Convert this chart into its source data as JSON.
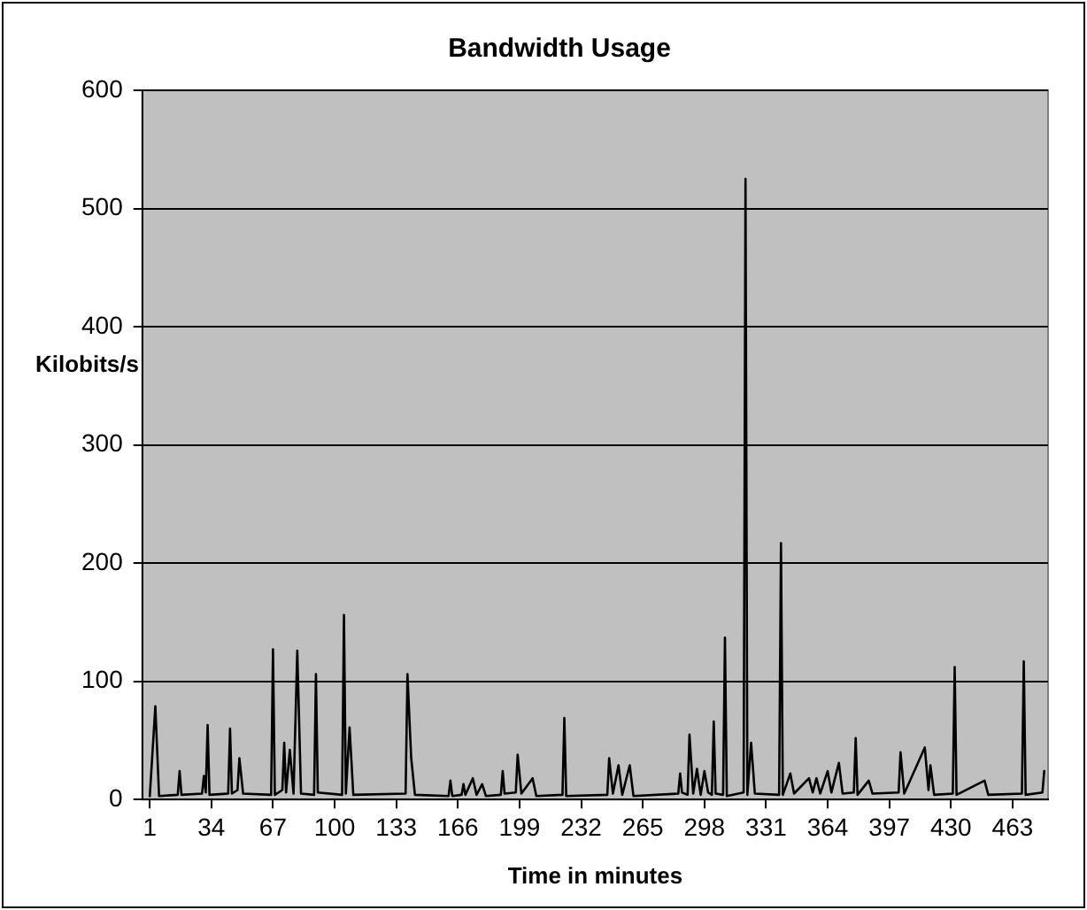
{
  "chart_data": {
    "type": "line",
    "title": "Bandwidth Usage",
    "xlabel": "Time in minutes",
    "ylabel": "Kilobits/s",
    "x": [
      1,
      4,
      6,
      16,
      17,
      18,
      29,
      30,
      31,
      32,
      33,
      43,
      44,
      45,
      48,
      49,
      51,
      66,
      67,
      68,
      72,
      73,
      74,
      76,
      78,
      80,
      82,
      89,
      90,
      91,
      104,
      105,
      106,
      108,
      110,
      138,
      139,
      141,
      143,
      161,
      162,
      163,
      168,
      169,
      170,
      174,
      176,
      179,
      181,
      189,
      190,
      191,
      197,
      198,
      200,
      206,
      208,
      222,
      223,
      224,
      246,
      247,
      249,
      252,
      254,
      258,
      260,
      284,
      285,
      286,
      289,
      290,
      292,
      294,
      296,
      298,
      300,
      302,
      303,
      304,
      308,
      309,
      310,
      319,
      320,
      321,
      323,
      325,
      338,
      339,
      340,
      344,
      346,
      354,
      356,
      358,
      360,
      364,
      366,
      370,
      372,
      378,
      379,
      380,
      386,
      388,
      402,
      403,
      405,
      416,
      418,
      419,
      421,
      431,
      432,
      433,
      448,
      450,
      468,
      469,
      470,
      479,
      480
    ],
    "values": [
      2,
      79,
      3,
      4,
      24,
      4,
      5,
      20,
      6,
      63,
      4,
      5,
      60,
      5,
      8,
      35,
      5,
      4,
      127,
      4,
      8,
      48,
      6,
      42,
      5,
      126,
      5,
      4,
      106,
      6,
      4,
      156,
      5,
      61,
      4,
      5,
      106,
      35,
      4,
      3,
      16,
      3,
      4,
      13,
      4,
      18,
      4,
      13,
      3,
      4,
      24,
      5,
      6,
      38,
      5,
      18,
      3,
      4,
      69,
      3,
      4,
      35,
      5,
      29,
      4,
      29,
      3,
      5,
      22,
      6,
      4,
      55,
      5,
      26,
      4,
      24,
      6,
      4,
      66,
      5,
      4,
      137,
      3,
      6,
      525,
      4,
      48,
      5,
      4,
      217,
      4,
      22,
      5,
      18,
      6,
      18,
      5,
      24,
      6,
      31,
      5,
      6,
      52,
      4,
      16,
      5,
      6,
      40,
      5,
      44,
      8,
      29,
      4,
      5,
      112,
      4,
      16,
      4,
      5,
      117,
      4,
      6,
      25
    ],
    "color": "#000000",
    "xlim": [
      -3,
      482
    ],
    "xticks": [
      1,
      34,
      67,
      100,
      133,
      166,
      199,
      232,
      265,
      298,
      331,
      364,
      397,
      430,
      463
    ],
    "ylim": [
      0,
      600
    ],
    "yticks": [
      0,
      100,
      200,
      300,
      400,
      500,
      600
    ],
    "grid": "y",
    "legend": false,
    "marker": "none",
    "line_style": "solid"
  }
}
